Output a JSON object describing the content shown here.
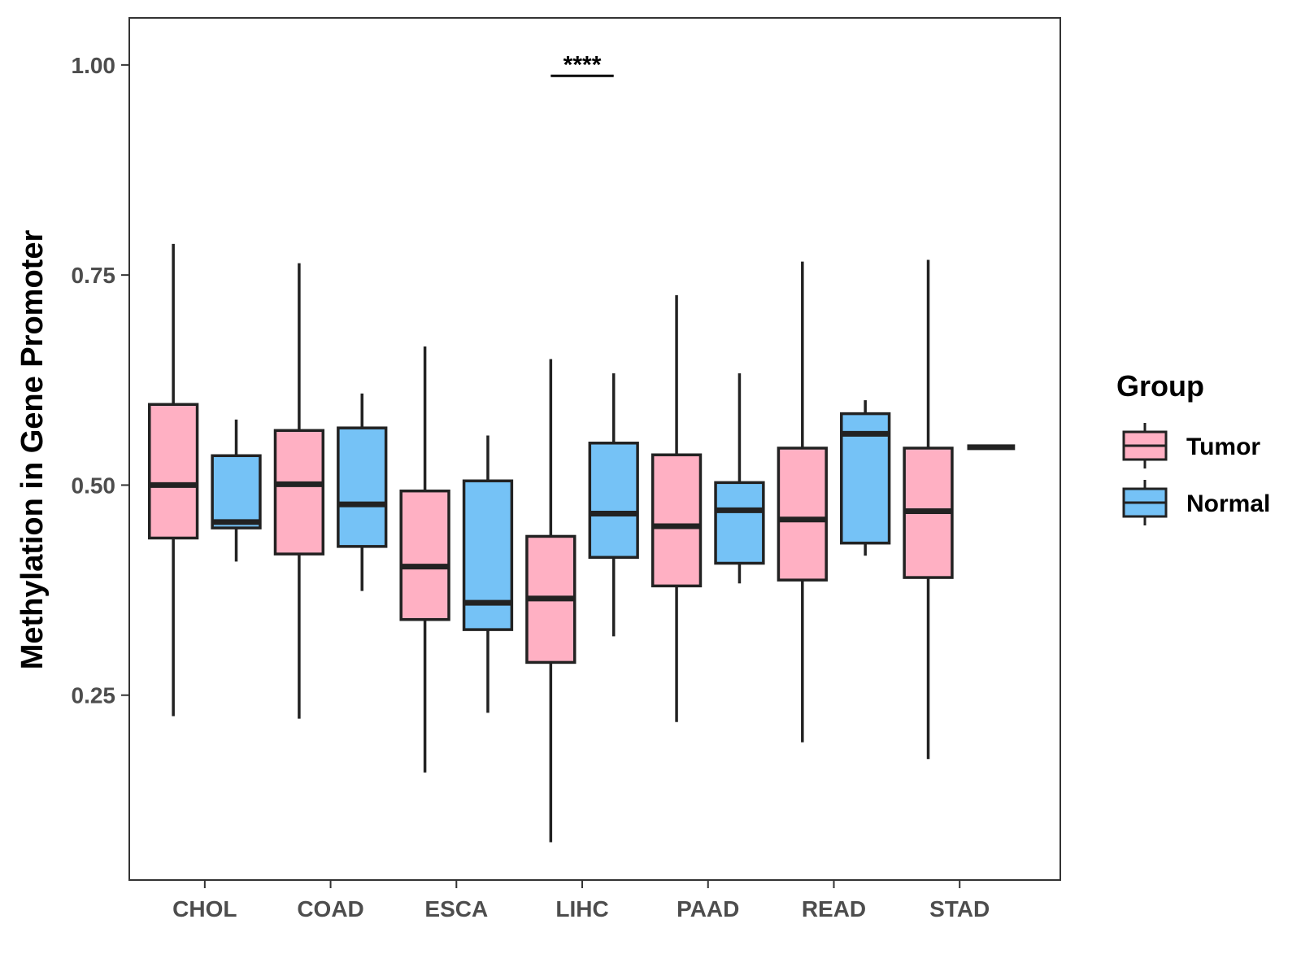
{
  "chart_data": {
    "type": "box",
    "title": "",
    "xlabel": "",
    "ylabel": "Methylation in Gene Promoter",
    "ylim": [
      0.03,
      1.056
    ],
    "yticks": [
      0.25,
      0.5,
      0.75,
      1.0
    ],
    "ytick_labels": [
      "0.25",
      "0.50",
      "0.75",
      "1.00"
    ],
    "categories": [
      "CHOL",
      "COAD",
      "ESCA",
      "LIHC",
      "PAAD",
      "READ",
      "STAD"
    ],
    "legend": {
      "title": "Group",
      "position": "right",
      "entries": [
        {
          "name": "Tumor",
          "color": "#FFB0C3"
        },
        {
          "name": "Normal",
          "color": "#75C2F6"
        }
      ]
    },
    "series": [
      {
        "name": "Tumor",
        "color": "#FFB0C3",
        "boxes": [
          {
            "category": "CHOL",
            "min": 0.225,
            "q1": 0.437,
            "median": 0.5,
            "q3": 0.596,
            "max": 0.787
          },
          {
            "category": "COAD",
            "min": 0.222,
            "q1": 0.418,
            "median": 0.501,
            "q3": 0.565,
            "max": 0.764
          },
          {
            "category": "ESCA",
            "min": 0.158,
            "q1": 0.34,
            "median": 0.403,
            "q3": 0.493,
            "max": 0.665
          },
          {
            "category": "LIHC",
            "min": 0.075,
            "q1": 0.289,
            "median": 0.365,
            "q3": 0.439,
            "max": 0.65
          },
          {
            "category": "PAAD",
            "min": 0.218,
            "q1": 0.38,
            "median": 0.451,
            "q3": 0.536,
            "max": 0.726
          },
          {
            "category": "READ",
            "min": 0.194,
            "q1": 0.387,
            "median": 0.459,
            "q3": 0.544,
            "max": 0.766
          },
          {
            "category": "STAD",
            "min": 0.174,
            "q1": 0.39,
            "median": 0.469,
            "q3": 0.544,
            "max": 0.768
          }
        ]
      },
      {
        "name": "Normal",
        "color": "#75C2F6",
        "boxes": [
          {
            "category": "CHOL",
            "min": 0.409,
            "q1": 0.449,
            "median": 0.456,
            "q3": 0.535,
            "max": 0.578
          },
          {
            "category": "COAD",
            "min": 0.374,
            "q1": 0.427,
            "median": 0.477,
            "q3": 0.568,
            "max": 0.609
          },
          {
            "category": "ESCA",
            "min": 0.229,
            "q1": 0.328,
            "median": 0.36,
            "q3": 0.505,
            "max": 0.559
          },
          {
            "category": "LIHC",
            "min": 0.32,
            "q1": 0.414,
            "median": 0.466,
            "q3": 0.55,
            "max": 0.633
          },
          {
            "category": "PAAD",
            "min": 0.383,
            "q1": 0.407,
            "median": 0.47,
            "q3": 0.503,
            "max": 0.633
          },
          {
            "category": "READ",
            "min": 0.416,
            "q1": 0.431,
            "median": 0.561,
            "q3": 0.585,
            "max": 0.601
          },
          {
            "category": "STAD",
            "min": 0.545,
            "q1": 0.545,
            "median": 0.545,
            "q3": 0.545,
            "max": 0.545
          }
        ]
      }
    ],
    "annotations": [
      {
        "category": "LIHC",
        "text": "****",
        "y": 0.987
      }
    ]
  }
}
